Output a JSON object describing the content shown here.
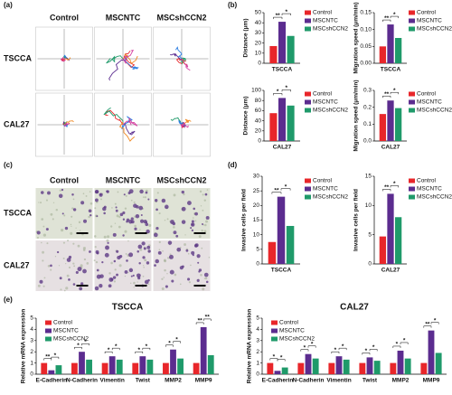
{
  "panels": {
    "a": {
      "label": "(a)",
      "columns": [
        "Control",
        "MSCNTC",
        "MSCshCCN2"
      ],
      "rows": [
        "TSCCA",
        "CAL27"
      ]
    },
    "b": {
      "label": "(b)"
    },
    "c": {
      "label": "(c)",
      "columns": [
        "Control",
        "MSCNTC",
        "MSCshCCN2"
      ],
      "rows": [
        "TSCCA",
        "CAL27"
      ]
    },
    "d": {
      "label": "(d)"
    },
    "e": {
      "label": "(e)"
    }
  },
  "chart_data": [
    {
      "type": "bar",
      "ylabel": "Distance (μm)",
      "categories": [
        "TSCCA"
      ],
      "series": [
        {
          "name": "Control",
          "color": "#e8262a",
          "values": [
            17
          ]
        },
        {
          "name": "MSCNTC",
          "color": "#5b2c8f",
          "values": [
            41
          ]
        },
        {
          "name": "MSCshCCN2",
          "color": "#1f9a6a",
          "values": [
            27
          ]
        }
      ],
      "ylim": [
        0,
        50
      ],
      "yticks": [
        0,
        10,
        20,
        30,
        40,
        50
      ],
      "significance": [
        [
          "**",
          "*"
        ]
      ]
    },
    {
      "type": "bar",
      "ylabel": "Migration speed (μm/min)",
      "categories": [
        "TSCCA"
      ],
      "series": [
        {
          "name": "Control",
          "color": "#e8262a",
          "values": [
            0.05
          ]
        },
        {
          "name": "MSCNTC",
          "color": "#5b2c8f",
          "values": [
            0.115
          ]
        },
        {
          "name": "MSCshCCN2",
          "color": "#1f9a6a",
          "values": [
            0.075
          ]
        }
      ],
      "ylim": [
        0,
        0.15
      ],
      "yticks": [
        {
          "value": 0,
          "label": "0.00"
        },
        0.05,
        {
          "value": 0.1,
          "label": "0.10"
        },
        0.15
      ],
      "significance": [
        [
          "**",
          "*"
        ]
      ]
    },
    {
      "type": "bar",
      "ylabel": "Distance (μm)",
      "categories": [
        "CAL27"
      ],
      "series": [
        {
          "name": "Control",
          "color": "#e8262a",
          "values": [
            55
          ]
        },
        {
          "name": "MSCNTC",
          "color": "#5b2c8f",
          "values": [
            85
          ]
        },
        {
          "name": "MSCshCCN2",
          "color": "#1f9a6a",
          "values": [
            70
          ]
        }
      ],
      "ylim": [
        0,
        100
      ],
      "yticks": [
        0,
        20,
        40,
        60,
        80,
        100
      ],
      "significance": [
        [
          "*",
          "*"
        ]
      ]
    },
    {
      "type": "bar",
      "ylabel": "Migration speed (μm/min)",
      "categories": [
        "CAL27"
      ],
      "series": [
        {
          "name": "Control",
          "color": "#e8262a",
          "values": [
            0.16
          ]
        },
        {
          "name": "MSCNTC",
          "color": "#5b2c8f",
          "values": [
            0.24
          ]
        },
        {
          "name": "MSCshCCN2",
          "color": "#1f9a6a",
          "values": [
            0.195
          ]
        }
      ],
      "ylim": [
        0,
        0.3
      ],
      "yticks": [
        {
          "value": 0,
          "label": "0.0"
        },
        0.1,
        0.2,
        0.3
      ],
      "significance": [
        [
          "**",
          "*"
        ]
      ]
    },
    {
      "type": "bar",
      "ylabel": "Invasive cells per field",
      "categories": [
        "TSCCA"
      ],
      "series": [
        {
          "name": "Control",
          "color": "#e8262a",
          "values": [
            7.5
          ]
        },
        {
          "name": "MSCNTC",
          "color": "#5b2c8f",
          "values": [
            23
          ]
        },
        {
          "name": "MSCshCCN2",
          "color": "#1f9a6a",
          "values": [
            13
          ]
        }
      ],
      "ylim": [
        0,
        30
      ],
      "yticks": [
        0,
        5,
        10,
        15,
        20,
        25,
        30
      ],
      "significance": [
        [
          "**",
          "*"
        ]
      ]
    },
    {
      "type": "bar",
      "ylabel": "Invasive cells per field",
      "categories": [
        "CAL27"
      ],
      "series": [
        {
          "name": "Control",
          "color": "#e8262a",
          "values": [
            4.7
          ]
        },
        {
          "name": "MSCNTC",
          "color": "#5b2c8f",
          "values": [
            12
          ]
        },
        {
          "name": "MSCshCCN2",
          "color": "#1f9a6a",
          "values": [
            8
          ]
        }
      ],
      "ylim": [
        0,
        15
      ],
      "yticks": [
        0,
        5,
        10,
        15
      ],
      "significance": [
        [
          "**",
          "*"
        ]
      ]
    },
    {
      "type": "bar",
      "title": "TSCCA",
      "ylabel": "Relative mRNA expression",
      "categories": [
        "E-Cadherin",
        "N-Cadherin",
        "Vimentin",
        "Twist",
        "MMP2",
        "MMP9"
      ],
      "series": [
        {
          "name": "Control",
          "color": "#e8262a",
          "values": [
            1,
            1,
            1,
            1,
            1,
            1
          ]
        },
        {
          "name": "MSCNTC",
          "color": "#5b2c8f",
          "values": [
            0.35,
            2.0,
            1.6,
            1.6,
            2.2,
            4.2
          ]
        },
        {
          "name": "MSCshCCN2",
          "color": "#1f9a6a",
          "values": [
            0.8,
            1.3,
            1.3,
            1.3,
            1.4,
            1.7
          ]
        }
      ],
      "ylim": [
        0,
        5
      ],
      "yticks": [
        0,
        1,
        2,
        3,
        4,
        5
      ],
      "significance": [
        [
          "**",
          "*"
        ],
        [
          "*",
          "*"
        ],
        [
          "*",
          "*"
        ],
        [
          "*",
          "*"
        ],
        [
          "*",
          "*"
        ],
        [
          "**",
          "**"
        ]
      ]
    },
    {
      "type": "bar",
      "title": "CAL27",
      "ylabel": "Relative mRNA expression",
      "categories": [
        "E-Cadherin",
        "N-Cadherin",
        "Vimentin",
        "Twist",
        "MMP2",
        "MMP9"
      ],
      "series": [
        {
          "name": "Control",
          "color": "#e8262a",
          "values": [
            1,
            1,
            1,
            1,
            1,
            1
          ]
        },
        {
          "name": "MSCNTC",
          "color": "#5b2c8f",
          "values": [
            0.3,
            1.8,
            1.6,
            1.5,
            2.1,
            3.9
          ]
        },
        {
          "name": "MSCshCCN2",
          "color": "#1f9a6a",
          "values": [
            0.6,
            1.4,
            1.3,
            1.2,
            1.4,
            1.9
          ]
        }
      ],
      "ylim": [
        0,
        5
      ],
      "yticks": [
        0,
        1,
        2,
        3,
        4,
        5
      ],
      "significance": [
        [
          "*",
          "*"
        ],
        [
          "*",
          "*"
        ],
        [
          "*",
          "*"
        ],
        [
          "*",
          "*"
        ],
        [
          "*",
          "*"
        ],
        [
          "**",
          "*"
        ]
      ]
    }
  ]
}
